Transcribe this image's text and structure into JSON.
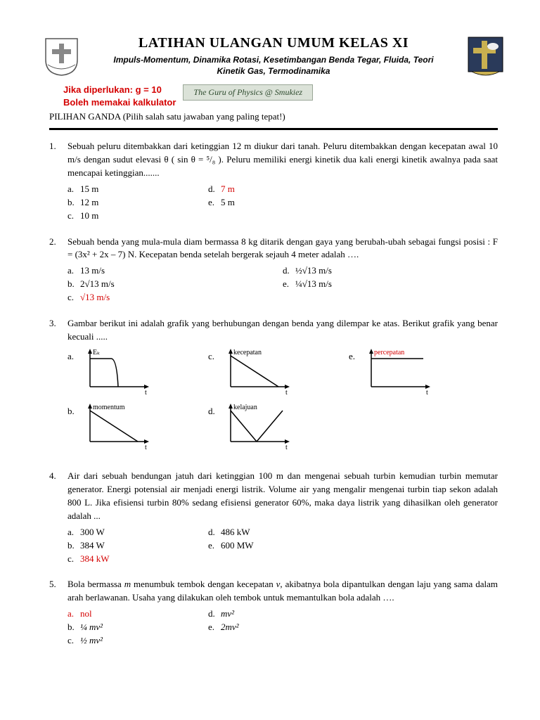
{
  "header": {
    "title": "LATIHAN ULANGAN UMUM KELAS XI",
    "subtitle_line1": "Impuls-Momentum,  Dinamika Rotasi, Kesetimbangan Benda Tegar, Fluida, Teori",
    "subtitle_line2": "Kinetik Gas, Termodinamika"
  },
  "notice": {
    "line1": "Jika diperlukan: g = 10",
    "line2": "Boleh memakai  kalkulator",
    "badge": "The Guru of Physics @ Smukiez"
  },
  "instruction": "PILIHAN GANDA (Pilih salah satu jawaban yang paling tepat!)",
  "questions": [
    {
      "num": "1.",
      "text": "Sebuah peluru ditembakkan dari ketinggian 12 m diukur dari tanah. Peluru ditembakkan dengan kecepatan awal 10 m/s dengan sudut elevasi θ  ( sin θ = ⁵/₈ ). Peluru memiliki  energi kinetik dua kali energi kinetik awalnya pada saat mencapai ketinggian.......",
      "options": [
        [
          {
            "l": "a.",
            "t": "15 m",
            "red": false
          },
          {
            "l": "d.",
            "t": "7 m",
            "red": true
          }
        ],
        [
          {
            "l": "b.",
            "t": "12 m",
            "red": false
          },
          {
            "l": "e.",
            "t": " 5 m",
            "red": false
          }
        ],
        [
          {
            "l": "c.",
            "t": "10 m",
            "red": false
          }
        ]
      ]
    },
    {
      "num": "2.",
      "text": "Sebuah benda yang mula-mula diam bermassa 8 kg ditarik dengan gaya yang berubah-ubah sebagai fungsi posisi : F = (3x² + 2x – 7) N. Kecepatan benda setelah bergerak sejauh 4 meter adalah ….",
      "options": [
        [
          {
            "l": "a.",
            "t": "13 m/s",
            "red": false
          },
          {
            "l": "d.",
            "t": "½√13 m/s",
            "red": false
          }
        ],
        [
          {
            "l": "b.",
            "t": "2√13 m/s",
            "red": false
          },
          {
            "l": "e.",
            "t": "¼√13 m/s",
            "red": false
          }
        ],
        [
          {
            "l": "c.",
            "t": "√13 m/s",
            "red": true
          }
        ]
      ],
      "wide": true
    },
    {
      "num": "3.",
      "text": "Gambar berikut ini adalah  grafik yang berhubungan  dengan benda yang dilempar ke atas. Berikut grafik yang benar kecuali .....",
      "graphs": true
    },
    {
      "num": "4.",
      "text": "Air dari sebuah bendungan jatuh dari ketinggian 100 m dan mengenai sebuah turbin kemudian turbin memutar generator. Energi potensial air menjadi energi listrik. Volume air yang mengalir mengenai turbin tiap sekon adalah 800 L. Jika efisiensi turbin 80% sedang efisiensi generator 60%, maka  daya listrik yang dihasilkan oleh generator adalah ...",
      "options": [
        [
          {
            "l": "a.",
            "t": "300 W",
            "red": false
          },
          {
            "l": "d.",
            "t": "486 kW",
            "red": false
          }
        ],
        [
          {
            "l": "b.",
            "t": "384 W",
            "red": false
          },
          {
            "l": "e.",
            "t": "600 MW",
            "red": false
          }
        ],
        [
          {
            "l": "c.",
            "t": "384 kW",
            "red": true
          }
        ]
      ]
    },
    {
      "num": "5.",
      "text_html": "Bola bermassa <i>m</i> menumbuk tembok dengan kecepatan <i>v</i>, akibatnya bola dipantulkan dengan laju yang sama dalam arah berlawanan. Usaha yang dilakukan oleh tembok untuk memantulkan bola adalah ….",
      "options": [
        [
          {
            "l": "a.",
            "t": "nol",
            "red": true,
            "lred": true
          },
          {
            "l": "d.",
            "t": "mv²",
            "red": false,
            "italic": true
          }
        ],
        [
          {
            "l": "b.",
            "t": "¼ mv²",
            "red": false,
            "italic": true
          },
          {
            "l": "e.",
            "t": "2mv²",
            "red": false,
            "italic": true
          }
        ],
        [
          {
            "l": "c.",
            "t": "½ mv²",
            "red": false,
            "italic": true
          }
        ]
      ]
    }
  ],
  "graphs": {
    "a": {
      "ylabel": "Eₖ",
      "type": "flat-then-zero"
    },
    "b": {
      "ylabel": "momentum",
      "type": "down-linear"
    },
    "c": {
      "ylabel": "kecepatan",
      "type": "down-linear"
    },
    "d": {
      "ylabel": "kelajuan",
      "type": "v-shape"
    },
    "e": {
      "ylabel": "percepatan",
      "type": "flat-high",
      "red": true
    }
  },
  "colors": {
    "text": "#000000",
    "answer_red": "#d40000",
    "badge_bg": "#dbe2d8",
    "badge_border": "#9aa797",
    "badge_text": "#2d4a2d"
  }
}
